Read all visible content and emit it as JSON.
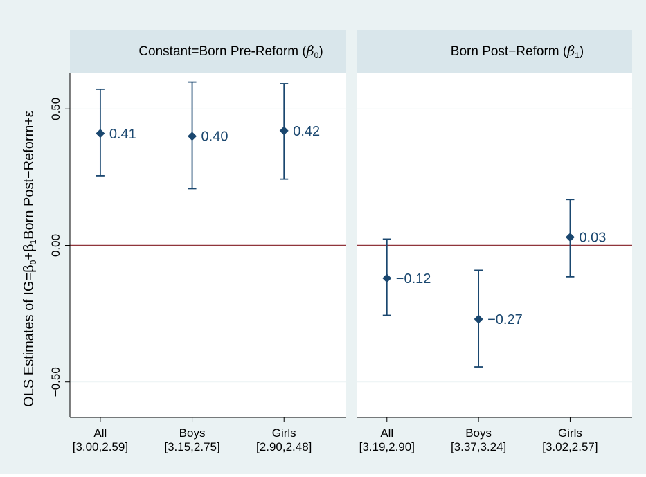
{
  "chart_data": {
    "type": "scatter",
    "ylabel_parts": [
      "OLS Estimates of IG=β",
      "0",
      "+β",
      "1",
      "Born Post−Reform+ε"
    ],
    "ylim": [
      -0.63,
      0.63
    ],
    "yticks": [
      0.5,
      0.0,
      -0.5
    ],
    "ytick_labels": [
      "0.50",
      "0.00",
      "−0.50"
    ],
    "reference_line": 0,
    "grid": true,
    "colors": {
      "outer_background": "#eaf2f3",
      "panel_background": "#ffffff",
      "header_background": "#d9e6eb",
      "marker": "#1a476f",
      "reference_line": "#90353b",
      "gridline": "#eaf2f3",
      "text": "#000000"
    },
    "panels": [
      {
        "title_text": "Constant=Born Pre-Reform",
        "title_symbol": "β̂",
        "title_subscript": "0",
        "categories": [
          "All",
          "Boys",
          "Girls"
        ],
        "category_sublabels": [
          "[3.00,2.59]",
          "[3.15,2.75]",
          "[2.90,2.48]"
        ],
        "points": [
          {
            "estimate": 0.41,
            "lower": 0.255,
            "upper": 0.572,
            "label": "0.41"
          },
          {
            "estimate": 0.4,
            "lower": 0.208,
            "upper": 0.598,
            "label": "0.40"
          },
          {
            "estimate": 0.42,
            "lower": 0.243,
            "upper": 0.592,
            "label": "0.42"
          }
        ]
      },
      {
        "title_text": "Born Post−Reform",
        "title_symbol": "β̂",
        "title_subscript": "1",
        "categories": [
          "All",
          "Boys",
          "Girls"
        ],
        "category_sublabels": [
          "[3.19,2.90]",
          "[3.37,3.24]",
          "[3.02,2.57]"
        ],
        "points": [
          {
            "estimate": -0.12,
            "lower": -0.256,
            "upper": 0.023,
            "label": "−0.12"
          },
          {
            "estimate": -0.27,
            "lower": -0.445,
            "upper": -0.091,
            "label": "−0.27"
          },
          {
            "estimate": 0.03,
            "lower": -0.115,
            "upper": 0.168,
            "label": "0.03"
          }
        ]
      }
    ]
  }
}
